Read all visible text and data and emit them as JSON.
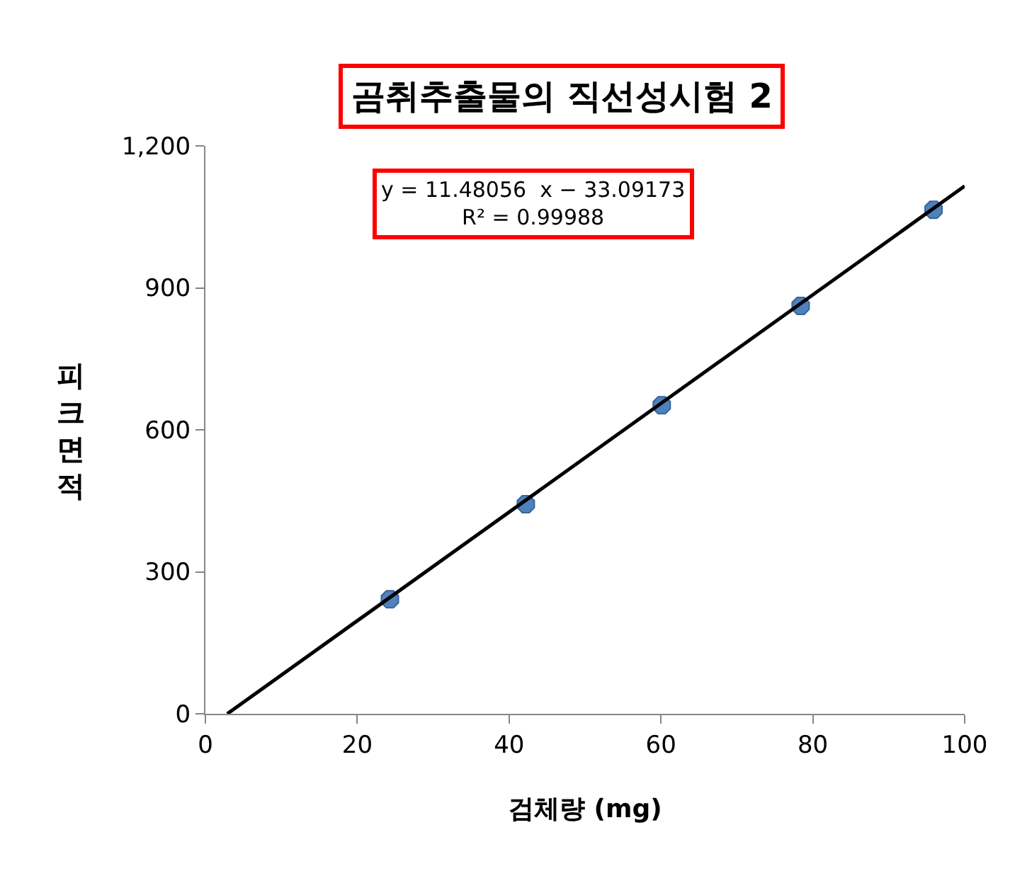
{
  "chart_data": {
    "type": "scatter",
    "title": "곰취추출물의 직선성시험 2",
    "xlabel": "검체량 (mg)",
    "ylabel": "피크면적",
    "x": [
      24.3,
      42.2,
      60.1,
      78.4,
      95.9
    ],
    "series": [
      {
        "color": "#4f81bd",
        "values": [
          242,
          443,
          652,
          862,
          1065
        ],
        "marker": "circle"
      },
      {
        "type": "line",
        "color": "#000000",
        "x": [
          2.88,
          100
        ],
        "values": [
          0,
          1115
        ],
        "marker": "none",
        "line_style": "solid"
      }
    ],
    "annotations": [
      "y = 11.48056  x − 33.09173\nR² = 0.99988"
    ],
    "xlim": [
      0,
      100
    ],
    "xticks": [
      0,
      20,
      40,
      60,
      80,
      100
    ],
    "ylim": [
      0,
      1200
    ],
    "yticks": [
      0,
      {
        "value": 300,
        "label": "300"
      },
      {
        "value": 600,
        "label": "600"
      },
      {
        "value": 900,
        "label": "900"
      },
      {
        "value": 1200,
        "label": "1,200"
      }
    ],
    "tick_labels": "xy"
  }
}
